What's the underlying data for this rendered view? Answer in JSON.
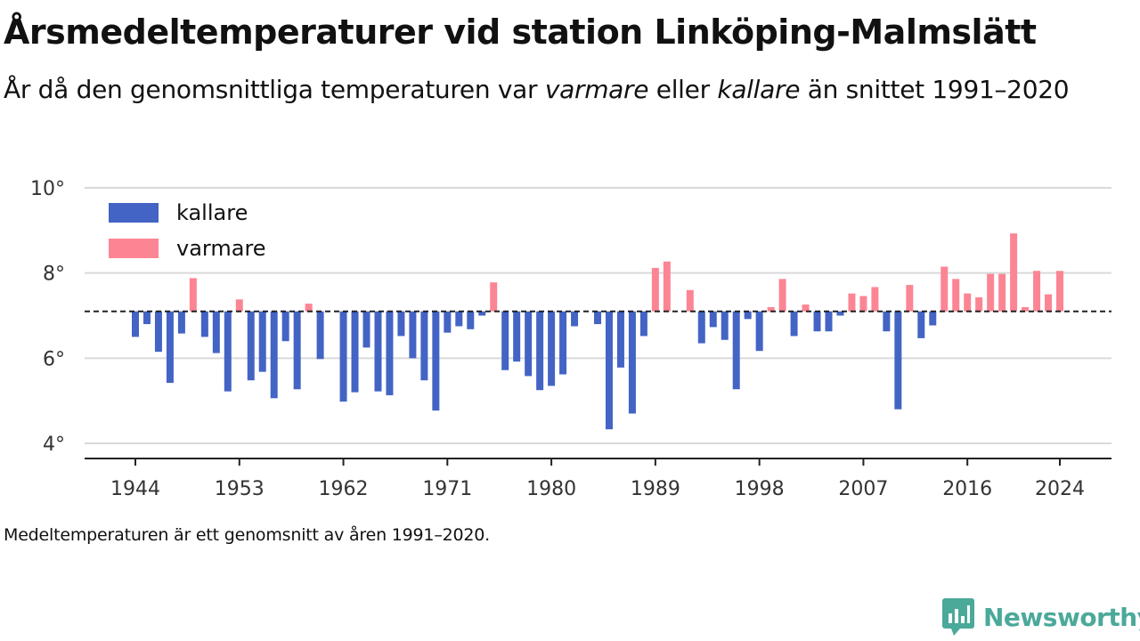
{
  "title": "Årsmedeltemperaturer vid station Linköping-Malmslätt",
  "subtitle": {
    "part1": "År då den genomsnittliga temperaturen var ",
    "warmer": "varmare",
    "part2": " eller ",
    "colder": "kallare",
    "part3": " än snittet 1991–2020"
  },
  "footnote": "Medeltemperaturen är ett genomsnitt av åren 1991–2020.",
  "brand": {
    "name": "Newsworthy",
    "logo_icon": "newsworthy-logo-icon",
    "color": "#4ba99a"
  },
  "colors": {
    "kallare": "#4364c4",
    "varmare": "#fc8594",
    "baseline": "#222222",
    "grid": "#d9d9d9"
  },
  "chart_data": {
    "type": "bar",
    "baseline": 7.1,
    "x_ticks": [
      1944,
      1953,
      1962,
      1971,
      1980,
      1989,
      1998,
      2007,
      2016,
      2024
    ],
    "y_ticks": [
      4,
      6,
      8,
      10
    ],
    "y_tick_labels": [
      "4°",
      "6°",
      "8°",
      "10°"
    ],
    "ylim": [
      3.65,
      10
    ],
    "x_range": [
      1939.6,
      1928.5
    ],
    "legend": [
      {
        "key": "kallare",
        "label": "kallare"
      },
      {
        "key": "varmare",
        "label": "varmare"
      }
    ],
    "grid": true,
    "legend_position": "top-left",
    "years": [
      1944,
      1945,
      1946,
      1947,
      1948,
      1949,
      1950,
      1951,
      1952,
      1953,
      1954,
      1955,
      1956,
      1957,
      1958,
      1959,
      1960,
      1961,
      1962,
      1963,
      1964,
      1965,
      1966,
      1967,
      1968,
      1969,
      1970,
      1971,
      1972,
      1973,
      1974,
      1975,
      1976,
      1977,
      1978,
      1979,
      1980,
      1981,
      1982,
      1983,
      1984,
      1985,
      1986,
      1987,
      1988,
      1989,
      1990,
      1991,
      1992,
      1993,
      1994,
      1995,
      1996,
      1997,
      1998,
      1999,
      2000,
      2001,
      2002,
      2003,
      2004,
      2005,
      2006,
      2007,
      2008,
      2009,
      2010,
      2011,
      2012,
      2013,
      2014,
      2015,
      2016,
      2017,
      2018,
      2019,
      2020,
      2021,
      2022,
      2023,
      2024
    ],
    "values": [
      6.5,
      6.8,
      6.15,
      5.42,
      6.58,
      7.88,
      6.5,
      6.12,
      5.22,
      7.38,
      5.48,
      5.68,
      5.06,
      6.4,
      5.27,
      7.28,
      5.98,
      7.1,
      4.98,
      5.2,
      6.25,
      5.22,
      5.13,
      6.52,
      6.0,
      5.48,
      4.77,
      6.6,
      6.75,
      6.68,
      7.0,
      7.78,
      5.72,
      5.92,
      5.58,
      5.25,
      5.35,
      5.62,
      6.75,
      7.1,
      6.8,
      4.33,
      5.78,
      4.7,
      6.52,
      8.12,
      8.27,
      7.1,
      7.6,
      6.35,
      6.73,
      6.43,
      5.27,
      6.92,
      6.17,
      7.2,
      7.86,
      6.52,
      7.26,
      6.63,
      6.63,
      7.0,
      7.52,
      7.46,
      7.67,
      6.63,
      4.8,
      7.72,
      6.47,
      6.77,
      8.15,
      7.86,
      7.52,
      7.43,
      7.98,
      7.98,
      8.93,
      7.2,
      8.05,
      7.5,
      8.05
    ]
  }
}
